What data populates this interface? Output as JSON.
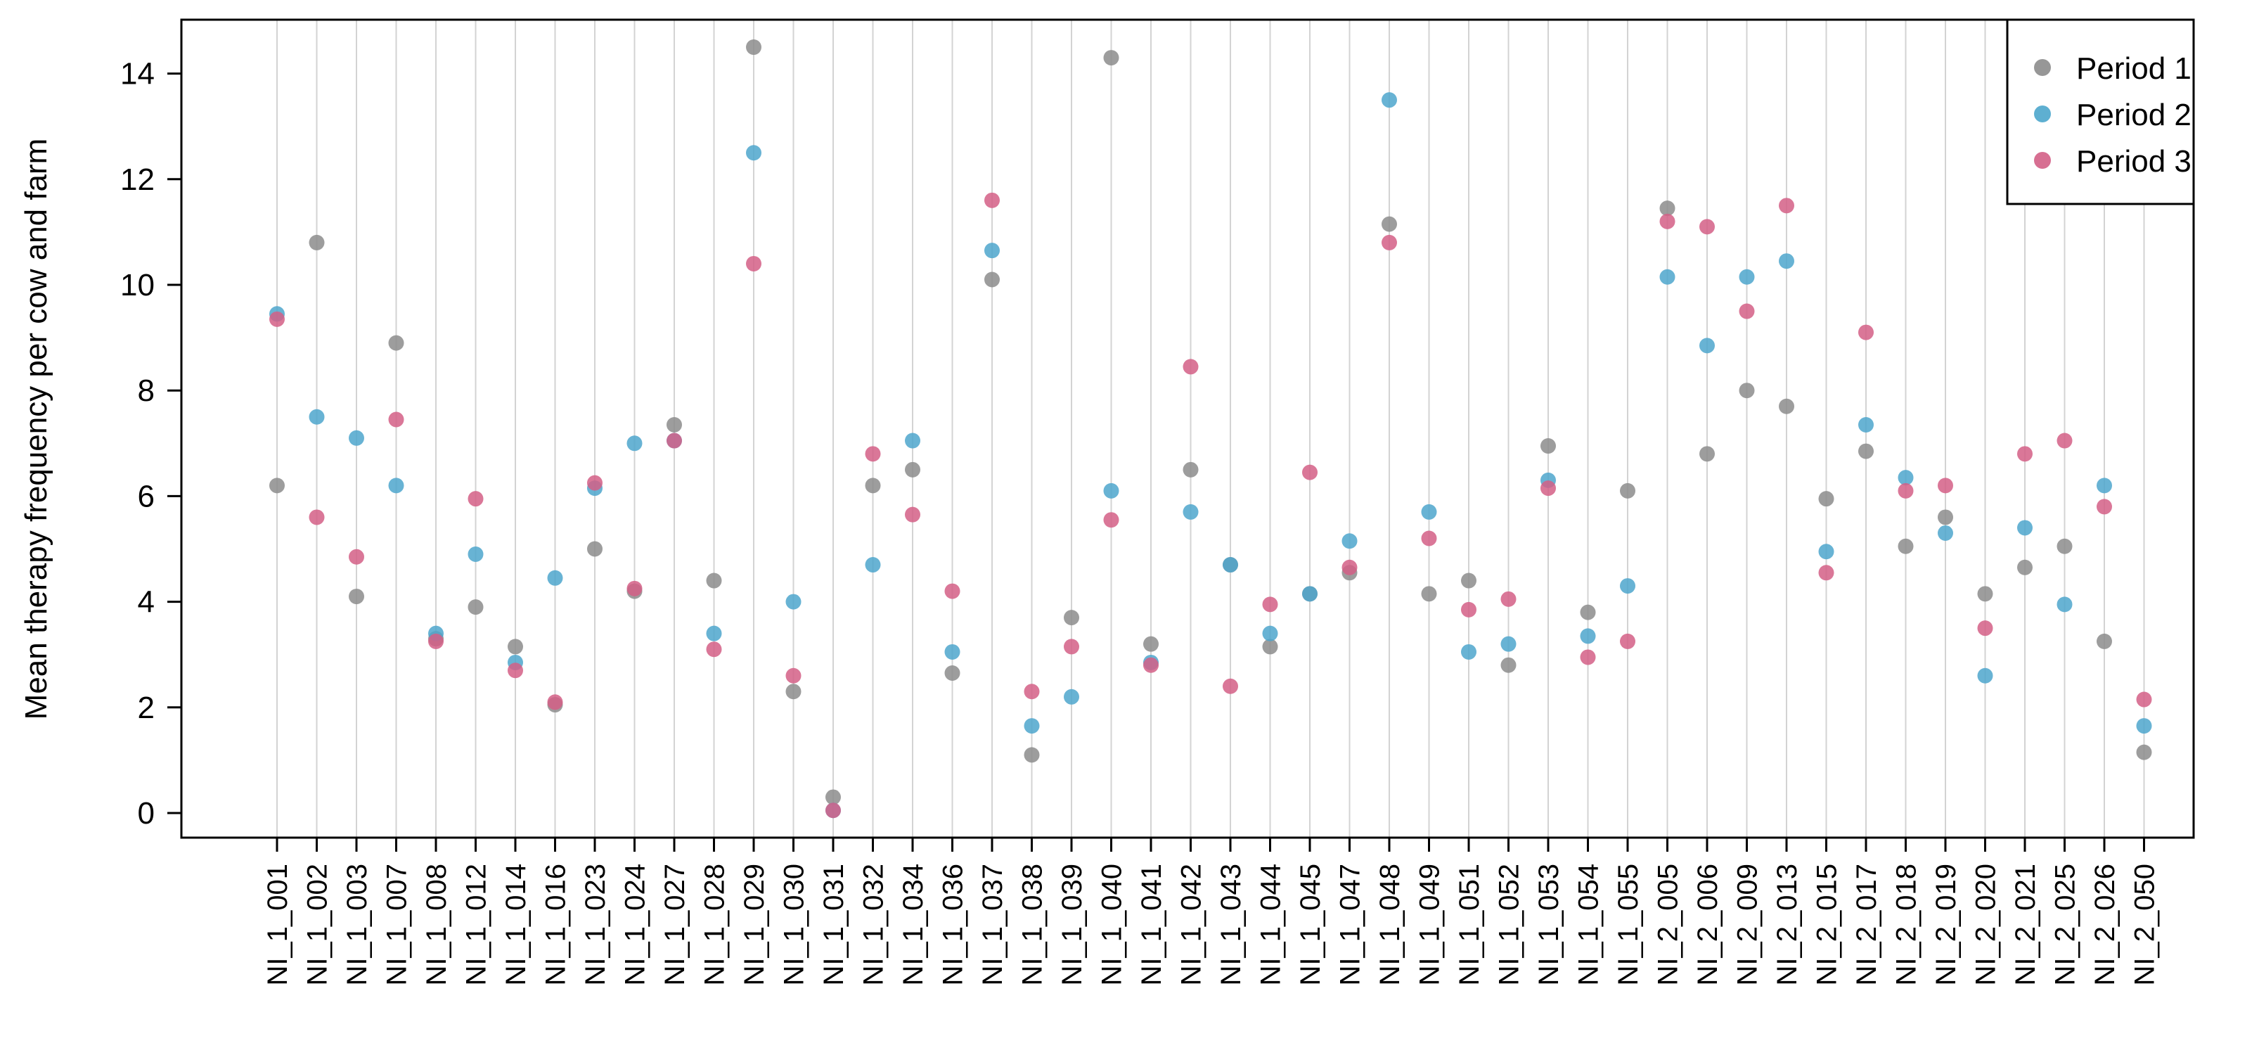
{
  "chart_data": {
    "type": "scatter",
    "title": "",
    "xlabel": "",
    "ylabel": "Mean therapy frequency per cow and farm",
    "ylim": [
      -0.5,
      15
    ],
    "yticks": [
      0,
      2,
      4,
      6,
      8,
      10,
      12,
      14
    ],
    "grid": "vertical lines at each category",
    "legend_position": "top-right",
    "categories": [
      "NI_1_001",
      "NI_1_002",
      "NI_1_003",
      "NI_1_007",
      "NI_1_008",
      "NI_1_012",
      "NI_1_014",
      "NI_1_016",
      "NI_1_023",
      "NI_1_024",
      "NI_1_027",
      "NI_1_028",
      "NI_1_029",
      "NI_1_030",
      "NI_1_031",
      "NI_1_032",
      "NI_1_034",
      "NI_1_036",
      "NI_1_037",
      "NI_1_038",
      "NI_1_039",
      "NI_1_040",
      "NI_1_041",
      "NI_1_042",
      "NI_1_043",
      "NI_1_044",
      "NI_1_045",
      "NI_1_047",
      "NI_1_048",
      "NI_1_049",
      "NI_1_051",
      "NI_1_052",
      "NI_1_053",
      "NI_1_054",
      "NI_1_055",
      "NI_2_005",
      "NI_2_006",
      "NI_2_009",
      "NI_2_013",
      "NI_2_015",
      "NI_2_017",
      "NI_2_018",
      "NI_2_019",
      "NI_2_020",
      "NI_2_021",
      "NI_2_025",
      "NI_2_026",
      "NI_2_050"
    ],
    "series": [
      {
        "name": "Period 1",
        "color": "#8c8c8c",
        "values": [
          6.2,
          10.8,
          4.1,
          8.9,
          3.3,
          3.9,
          3.15,
          2.05,
          5.0,
          4.2,
          7.35,
          4.4,
          14.5,
          2.3,
          0.3,
          6.2,
          6.5,
          2.65,
          10.1,
          1.1,
          3.7,
          14.3,
          3.2,
          6.5,
          4.7,
          3.15,
          4.15,
          4.55,
          11.15,
          4.15,
          4.4,
          2.8,
          6.95,
          3.8,
          6.1,
          11.45,
          6.8,
          8.0,
          7.7,
          5.95,
          6.85,
          5.05,
          5.6,
          4.15,
          4.65,
          5.05,
          3.25,
          1.15
        ]
      },
      {
        "name": "Period 2",
        "color": "#4da6cc",
        "values": [
          9.45,
          7.5,
          7.1,
          6.2,
          3.4,
          4.9,
          2.85,
          4.45,
          6.15,
          7.0,
          7.05,
          3.4,
          12.5,
          4.0,
          0.05,
          4.7,
          7.05,
          3.05,
          10.65,
          1.65,
          2.2,
          6.1,
          2.85,
          5.7,
          4.7,
          3.4,
          4.15,
          5.15,
          13.5,
          5.7,
          3.05,
          3.2,
          6.3,
          3.35,
          4.3,
          10.15,
          8.85,
          10.15,
          10.45,
          4.95,
          7.35,
          6.35,
          5.3,
          2.6,
          5.4,
          3.95,
          6.2,
          1.65
        ]
      },
      {
        "name": "Period 3",
        "color": "#d35f86",
        "values": [
          9.35,
          5.6,
          4.85,
          7.45,
          3.25,
          5.95,
          2.7,
          2.1,
          6.25,
          4.25,
          7.05,
          3.1,
          10.4,
          2.6,
          0.05,
          6.8,
          5.65,
          4.2,
          11.6,
          2.3,
          3.15,
          5.55,
          2.8,
          8.45,
          2.4,
          3.95,
          6.45,
          4.65,
          10.8,
          5.2,
          3.85,
          4.05,
          6.15,
          2.95,
          3.25,
          11.2,
          11.1,
          9.5,
          11.5,
          4.55,
          9.1,
          6.1,
          6.2,
          3.5,
          6.8,
          7.05,
          5.8,
          2.15
        ]
      }
    ]
  }
}
